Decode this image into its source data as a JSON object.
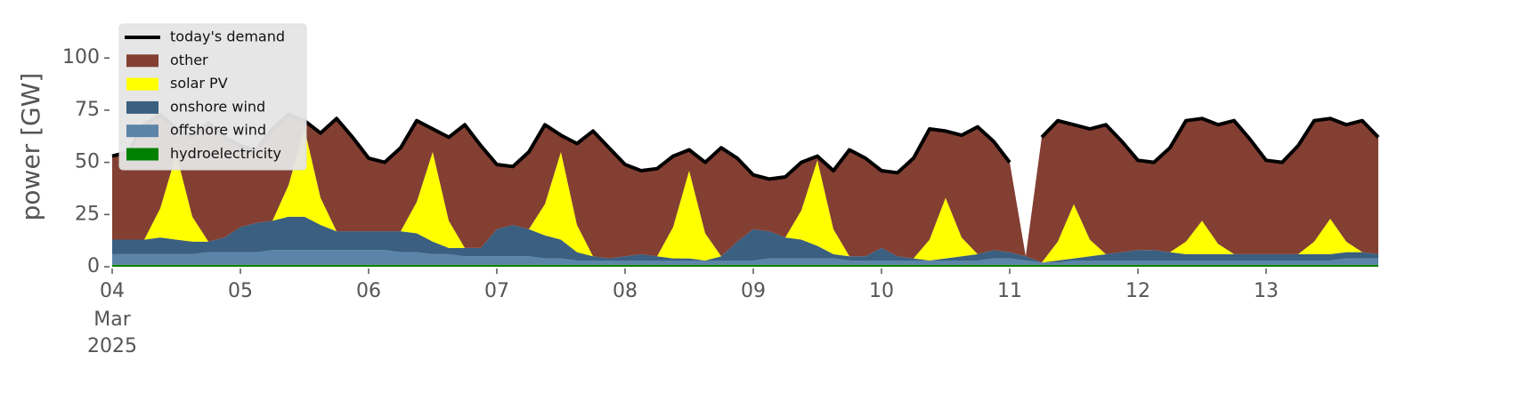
{
  "chart_data": {
    "type": "area",
    "stacked": true,
    "ylabel": "power [GW]",
    "ylim": [
      0,
      115
    ],
    "yticks": [
      0,
      25,
      50,
      75,
      100
    ],
    "xlim": [
      "2025-03-04T00:00",
      "2025-03-13T21:00"
    ],
    "xticks": [
      {
        "value": "2025-03-04T00:00",
        "label": "04"
      },
      {
        "value": "2025-03-05T00:00",
        "label": "05"
      },
      {
        "value": "2025-03-06T00:00",
        "label": "06"
      },
      {
        "value": "2025-03-07T00:00",
        "label": "07"
      },
      {
        "value": "2025-03-08T00:00",
        "label": "08"
      },
      {
        "value": "2025-03-09T00:00",
        "label": "09"
      },
      {
        "value": "2025-03-10T00:00",
        "label": "10"
      },
      {
        "value": "2025-03-11T00:00",
        "label": "11"
      },
      {
        "value": "2025-03-12T00:00",
        "label": "12"
      },
      {
        "value": "2025-03-13T00:00",
        "label": "13"
      }
    ],
    "xtick_sublabels": [
      "Mar",
      "2025"
    ],
    "legend": "upper left",
    "x": [
      "2025-03-04T00:00",
      "2025-03-04T03:00",
      "2025-03-04T06:00",
      "2025-03-04T09:00",
      "2025-03-04T12:00",
      "2025-03-04T15:00",
      "2025-03-04T18:00",
      "2025-03-04T21:00",
      "2025-03-05T00:00",
      "2025-03-05T03:00",
      "2025-03-05T06:00",
      "2025-03-05T09:00",
      "2025-03-05T12:00",
      "2025-03-05T15:00",
      "2025-03-05T18:00",
      "2025-03-05T21:00",
      "2025-03-06T00:00",
      "2025-03-06T03:00",
      "2025-03-06T06:00",
      "2025-03-06T09:00",
      "2025-03-06T12:00",
      "2025-03-06T15:00",
      "2025-03-06T18:00",
      "2025-03-06T21:00",
      "2025-03-07T00:00",
      "2025-03-07T03:00",
      "2025-03-07T06:00",
      "2025-03-07T09:00",
      "2025-03-07T12:00",
      "2025-03-07T15:00",
      "2025-03-07T18:00",
      "2025-03-07T21:00",
      "2025-03-08T00:00",
      "2025-03-08T03:00",
      "2025-03-08T06:00",
      "2025-03-08T09:00",
      "2025-03-08T12:00",
      "2025-03-08T15:00",
      "2025-03-08T18:00",
      "2025-03-08T21:00",
      "2025-03-09T00:00",
      "2025-03-09T03:00",
      "2025-03-09T06:00",
      "2025-03-09T09:00",
      "2025-03-09T12:00",
      "2025-03-09T15:00",
      "2025-03-09T18:00",
      "2025-03-09T21:00",
      "2025-03-10T00:00",
      "2025-03-10T03:00",
      "2025-03-10T06:00",
      "2025-03-10T09:00",
      "2025-03-10T12:00",
      "2025-03-10T15:00",
      "2025-03-10T18:00",
      "2025-03-10T21:00",
      "2025-03-11T00:00",
      "2025-03-11T03:00",
      "2025-03-11T06:00",
      "2025-03-11T09:00",
      "2025-03-11T12:00",
      "2025-03-11T15:00",
      "2025-03-11T18:00",
      "2025-03-11T21:00",
      "2025-03-12T00:00",
      "2025-03-12T03:00",
      "2025-03-12T06:00",
      "2025-03-12T09:00",
      "2025-03-12T12:00",
      "2025-03-12T15:00",
      "2025-03-12T18:00",
      "2025-03-12T21:00",
      "2025-03-13T00:00",
      "2025-03-13T03:00",
      "2025-03-13T06:00",
      "2025-03-13T09:00",
      "2025-03-13T12:00",
      "2025-03-13T15:00",
      "2025-03-13T18:00",
      "2025-03-13T21:00"
    ],
    "series": [
      {
        "name": "hydroelectricity",
        "kind": "area",
        "color": "#008000",
        "values": [
          1,
          1,
          1,
          1,
          1,
          1,
          1,
          1,
          1,
          1,
          1,
          1,
          1,
          1,
          1,
          1,
          1,
          1,
          1,
          1,
          1,
          1,
          1,
          1,
          1,
          1,
          1,
          1,
          1,
          1,
          1,
          1,
          1,
          1,
          1,
          1,
          1,
          1,
          1,
          1,
          1,
          1,
          1,
          1,
          1,
          1,
          1,
          1,
          1,
          1,
          1,
          1,
          1,
          1,
          1,
          1,
          1,
          1,
          1,
          1,
          1,
          1,
          1,
          1,
          1,
          1,
          1,
          1,
          1,
          1,
          1,
          1,
          1,
          1,
          1,
          1,
          1,
          1,
          1,
          1
        ]
      },
      {
        "name": "offshore wind",
        "kind": "area",
        "color": "#5b84a8",
        "values": [
          5,
          5,
          5,
          5,
          5,
          5,
          6,
          6,
          6,
          6,
          7,
          7,
          7,
          7,
          7,
          7,
          7,
          7,
          6,
          6,
          5,
          5,
          4,
          4,
          4,
          4,
          4,
          3,
          3,
          2,
          2,
          2,
          2,
          2,
          2,
          2,
          2,
          2,
          2,
          2,
          2,
          3,
          3,
          3,
          3,
          3,
          2,
          2,
          2,
          2,
          2,
          2,
          2,
          2,
          2,
          3,
          3,
          2,
          1,
          1,
          2,
          2,
          2,
          2,
          2,
          2,
          2,
          2,
          2,
          2,
          2,
          2,
          2,
          2,
          2,
          2,
          2,
          3,
          3,
          3
        ]
      },
      {
        "name": "onshore wind",
        "kind": "area",
        "color": "#3a5f80",
        "values": [
          7,
          7,
          7,
          8,
          7,
          6,
          5,
          7,
          12,
          14,
          14,
          16,
          16,
          12,
          9,
          9,
          9,
          9,
          10,
          9,
          6,
          3,
          4,
          4,
          13,
          15,
          13,
          11,
          9,
          4,
          2,
          1,
          2,
          3,
          2,
          1,
          1,
          0,
          2,
          9,
          15,
          13,
          10,
          9,
          6,
          2,
          2,
          2,
          6,
          2,
          1,
          0,
          1,
          2,
          3,
          4,
          3,
          2,
          0,
          1,
          1,
          2,
          3,
          4,
          5,
          5,
          4,
          3,
          3,
          3,
          3,
          3,
          3,
          3,
          3,
          3,
          3,
          3,
          3,
          2
        ]
      },
      {
        "name": "solar PV",
        "kind": "area",
        "color": "#ffff00",
        "values": [
          0,
          0,
          0,
          14,
          41,
          12,
          0,
          0,
          0,
          0,
          0,
          15,
          42,
          13,
          0,
          0,
          0,
          0,
          0,
          15,
          43,
          13,
          0,
          0,
          0,
          0,
          0,
          15,
          42,
          13,
          0,
          0,
          0,
          0,
          0,
          15,
          42,
          13,
          0,
          0,
          0,
          0,
          0,
          14,
          41,
          12,
          0,
          0,
          0,
          0,
          0,
          10,
          29,
          9,
          0,
          0,
          0,
          0,
          0,
          9,
          26,
          8,
          0,
          0,
          0,
          0,
          0,
          6,
          16,
          5,
          0,
          0,
          0,
          0,
          0,
          6,
          17,
          5,
          0,
          0
        ]
      },
      {
        "name": "other",
        "kind": "area",
        "color": "#833f32",
        "values": [
          40,
          42,
          55,
          45,
          12,
          38,
          57,
          48,
          39,
          35,
          44,
          34,
          4,
          31,
          54,
          45,
          35,
          33,
          40,
          39,
          11,
          40,
          59,
          49,
          31,
          28,
          37,
          38,
          8,
          39,
          60,
          53,
          44,
          40,
          42,
          34,
          10,
          34,
          52,
          40,
          26,
          25,
          29,
          23,
          2,
          28,
          51,
          47,
          37,
          40,
          48,
          53,
          32,
          49,
          61,
          52,
          43,
          0,
          60,
          58,
          38,
          53,
          62,
          53,
          43,
          42,
          50,
          58,
          49,
          57,
          64,
          55,
          45,
          44,
          52,
          58,
          48,
          56,
          63,
          56
        ]
      },
      {
        "name": "today's demand",
        "kind": "line",
        "color": "#000000",
        "values": [
          53,
          55,
          68,
          73,
          66,
          62,
          69,
          62,
          58,
          56,
          66,
          73,
          70,
          64,
          71,
          62,
          52,
          50,
          57,
          70,
          66,
          62,
          68,
          58,
          49,
          48,
          55,
          68,
          63,
          59,
          65,
          57,
          49,
          46,
          47,
          53,
          56,
          50,
          57,
          52,
          44,
          42,
          43,
          50,
          53,
          46,
          56,
          52,
          46,
          45,
          52,
          66,
          65,
          63,
          67,
          60,
          50,
          null,
          62,
          70,
          68,
          66,
          68,
          60,
          51,
          50,
          57,
          70,
          71,
          68,
          70,
          61,
          51,
          50,
          58,
          70,
          71,
          68,
          70,
          62
        ]
      }
    ]
  }
}
